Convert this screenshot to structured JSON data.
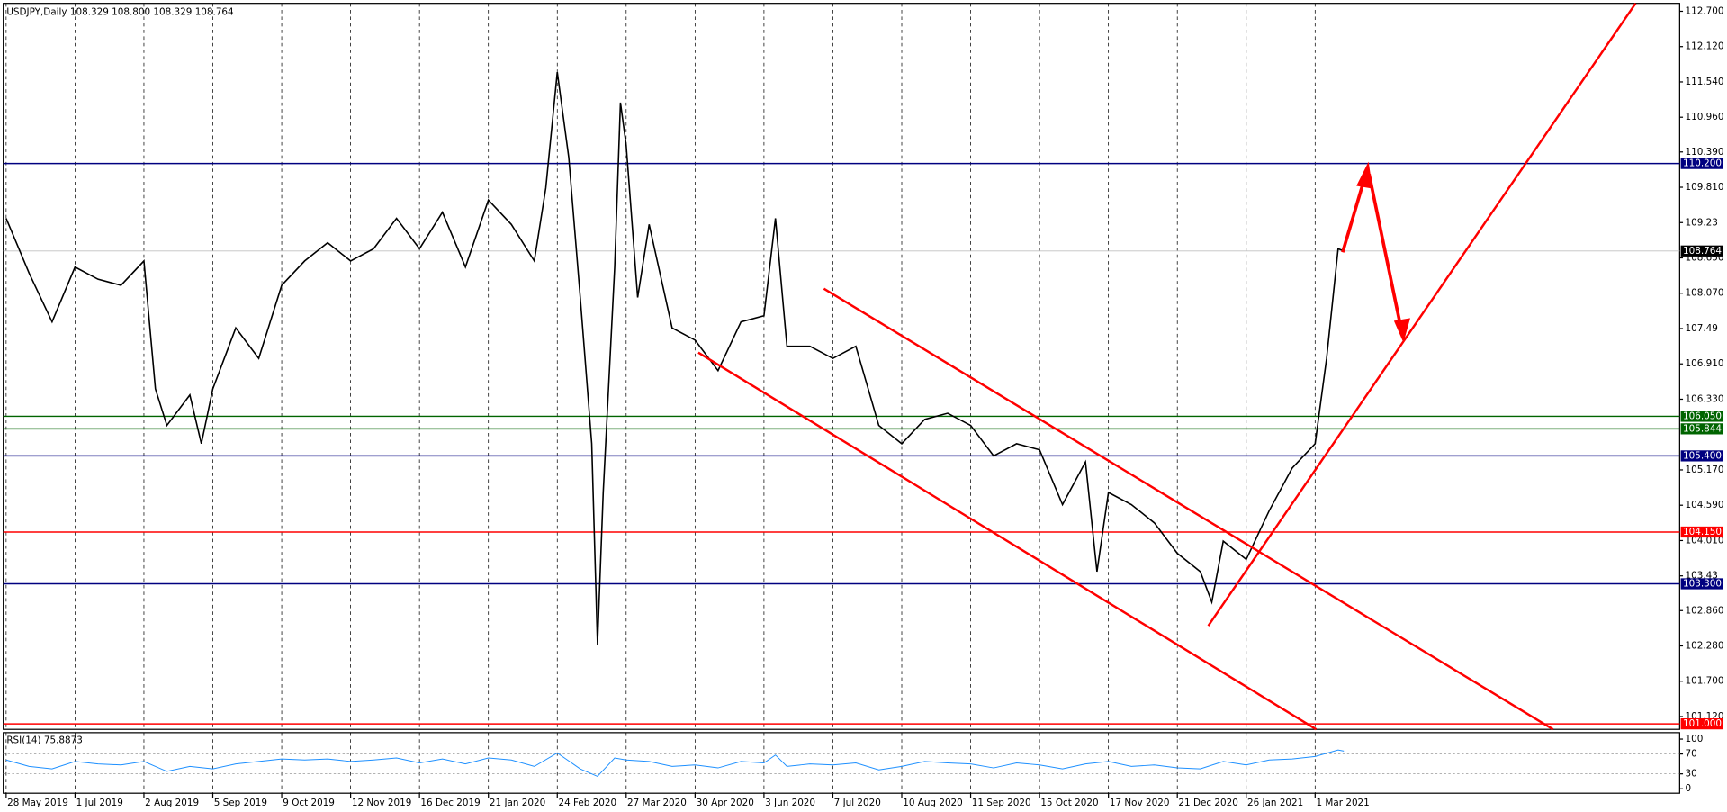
{
  "chart_data": [
    {
      "type": "line",
      "title": "USDJPY,Daily 108.329 108.800 108.329 108.764",
      "color": "#000000",
      "x": [
        0,
        8,
        16,
        24,
        32,
        40,
        48,
        52,
        56,
        64,
        68,
        72,
        80,
        88,
        96,
        104,
        112,
        120,
        128,
        136,
        144,
        152,
        160,
        168,
        176,
        184,
        188,
        192,
        196,
        200,
        204,
        206,
        208,
        212,
        214,
        216,
        220,
        224,
        232,
        240,
        248,
        256,
        264,
        268,
        272,
        280,
        288,
        296,
        304,
        312,
        320,
        328,
        336,
        344,
        352,
        360,
        368,
        376,
        380,
        384,
        392,
        400,
        408,
        416,
        420,
        424,
        432,
        440,
        448,
        456,
        460,
        464,
        466
      ],
      "values": [
        109.3,
        108.4,
        107.6,
        108.5,
        108.3,
        108.2,
        108.6,
        106.5,
        105.9,
        106.4,
        105.6,
        106.5,
        107.5,
        107.0,
        108.2,
        108.6,
        108.9,
        108.6,
        108.8,
        109.3,
        108.8,
        109.4,
        108.5,
        109.6,
        109.2,
        108.6,
        109.8,
        111.7,
        110.3,
        108.0,
        105.6,
        102.3,
        104.8,
        108.5,
        111.2,
        110.5,
        108.0,
        109.2,
        107.5,
        107.3,
        106.8,
        107.6,
        107.7,
        109.3,
        107.2,
        107.2,
        107.0,
        107.2,
        105.9,
        105.6,
        106.0,
        106.1,
        105.9,
        105.4,
        105.6,
        105.5,
        104.6,
        105.3,
        103.5,
        104.8,
        104.6,
        104.3,
        103.8,
        103.5,
        103.0,
        104.0,
        103.7,
        104.5,
        105.2,
        105.6,
        107.0,
        108.8,
        108.764
      ],
      "xlim": [
        -1,
        583
      ],
      "ylim": [
        100.91,
        112.83
      ],
      "xticks": [
        {
          "value": 0,
          "label": "28 May 2019"
        },
        {
          "value": 24,
          "label": "1 Jul 2019"
        },
        {
          "value": 48,
          "label": "2 Aug 2019"
        },
        {
          "value": 72,
          "label": "5 Sep 2019"
        },
        {
          "value": 96,
          "label": "9 Oct 2019"
        },
        {
          "value": 120,
          "label": "12 Nov 2019"
        },
        {
          "value": 144,
          "label": "16 Dec 2019"
        },
        {
          "value": 168,
          "label": "21 Jan 2020"
        },
        {
          "value": 192,
          "label": "24 Feb 2020"
        },
        {
          "value": 216,
          "label": "27 Mar 2020"
        },
        {
          "value": 240,
          "label": "30 Apr 2020"
        },
        {
          "value": 264,
          "label": "3 Jun 2020"
        },
        {
          "value": 288,
          "label": "7 Jul 2020"
        },
        {
          "value": 312,
          "label": "10 Aug 2020"
        },
        {
          "value": 336,
          "label": "11 Sep 2020"
        },
        {
          "value": 360,
          "label": "15 Oct 2020"
        },
        {
          "value": 384,
          "label": "17 Nov 2020"
        },
        {
          "value": 408,
          "label": "21 Dec 2020"
        },
        {
          "value": 432,
          "label": "26 Jan 2021"
        },
        {
          "value": 456,
          "label": "1 Mar 2021"
        }
      ],
      "yticks": [
        {
          "value": 112.7,
          "label": "112.700"
        },
        {
          "value": 112.12,
          "label": "112.120"
        },
        {
          "value": 111.54,
          "label": "111.540"
        },
        {
          "value": 110.96,
          "label": "110.960"
        },
        {
          "value": 110.39,
          "label": "110.390"
        },
        {
          "value": 109.81,
          "label": "109.810"
        },
        109.23,
        {
          "value": 108.65,
          "label": "108.650"
        },
        {
          "value": 108.07,
          "label": "108.070"
        },
        107.49,
        {
          "value": 106.91,
          "label": "106.910"
        },
        {
          "value": 106.33,
          "label": "106.330"
        },
        {
          "value": 105.17,
          "label": "105.170"
        },
        {
          "value": 104.59,
          "label": "104.590"
        },
        {
          "value": 104.01,
          "label": "104.010"
        },
        103.43,
        {
          "value": 102.86,
          "label": "102.860"
        },
        {
          "value": 102.28,
          "label": "102.280"
        },
        {
          "value": 101.7,
          "label": "101.700"
        },
        {
          "value": 101.12,
          "label": "101.120"
        }
      ],
      "levels": [
        {
          "value": 110.2,
          "label": "110.200",
          "color": "#000080"
        },
        {
          "value": 106.05,
          "label": "106.050",
          "color": "#006400"
        },
        {
          "value": 105.844,
          "color": "#006400"
        },
        {
          "value": 105.4,
          "label": "105.400",
          "color": "#000080"
        },
        {
          "value": 104.15,
          "label": "104.150",
          "color": "#ff0000"
        },
        {
          "value": 103.3,
          "label": "103.300",
          "color": "#000080"
        },
        {
          "value": 101.0,
          "label": "101.000",
          "color": "#ff0000"
        }
      ],
      "current_price": 108.764,
      "grid": true
    },
    {
      "type": "line",
      "title": "RSI(14) 75.8873",
      "color": "#1e90ff",
      "x": [
        0,
        8,
        16,
        24,
        32,
        40,
        48,
        56,
        64,
        72,
        80,
        88,
        96,
        104,
        112,
        120,
        128,
        136,
        144,
        152,
        160,
        168,
        176,
        184,
        192,
        200,
        206,
        212,
        216,
        224,
        232,
        240,
        248,
        256,
        264,
        268,
        272,
        280,
        288,
        296,
        304,
        312,
        320,
        328,
        336,
        344,
        352,
        360,
        368,
        376,
        384,
        392,
        400,
        408,
        416,
        424,
        432,
        440,
        448,
        456,
        464,
        466
      ],
      "values": [
        58,
        45,
        40,
        55,
        50,
        48,
        55,
        35,
        45,
        40,
        50,
        55,
        60,
        58,
        60,
        55,
        58,
        62,
        52,
        60,
        50,
        62,
        58,
        45,
        72,
        40,
        25,
        62,
        58,
        55,
        45,
        48,
        42,
        55,
        52,
        68,
        45,
        50,
        48,
        52,
        38,
        45,
        55,
        52,
        50,
        42,
        52,
        48,
        40,
        50,
        55,
        45,
        48,
        42,
        40,
        55,
        48,
        58,
        60,
        65,
        78,
        75.8873
      ],
      "xlim": [
        -1,
        583
      ],
      "ylim": [
        -9,
        113
      ],
      "yticks": [
        100,
        70,
        30,
        0
      ]
    }
  ]
}
